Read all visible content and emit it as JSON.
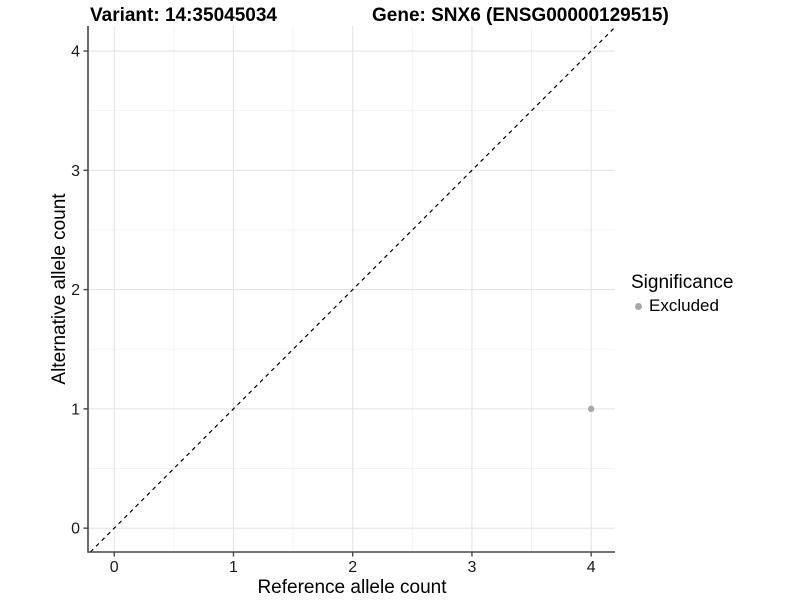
{
  "titles": {
    "variant": "Variant: 14:35045034",
    "gene": "Gene: SNX6 (ENSG00000129515)"
  },
  "chart_data": {
    "type": "scatter",
    "title_left": "Variant: 14:35045034",
    "title_right": "Gene: SNX6 (ENSG00000129515)",
    "xlabel": "Reference allele count",
    "ylabel": "Alternative allele count",
    "xlim": [
      -0.22,
      4.2
    ],
    "ylim": [
      -0.2,
      4.21
    ],
    "xticks": [
      0,
      1,
      2,
      3,
      4
    ],
    "yticks": [
      0,
      1,
      2,
      3,
      4
    ],
    "minor_xticks": [
      0.5,
      1.5,
      2.5,
      3.5
    ],
    "minor_yticks": [
      0.5,
      1.5,
      2.5,
      3.5
    ],
    "grid": "major+minor",
    "identity_line": {
      "slope": 1,
      "intercept": 0,
      "style": "dashed",
      "color": "#000000"
    },
    "points": [
      {
        "x": 4,
        "y": 1,
        "significance": "Excluded"
      }
    ],
    "point_color": "#a8a8a8",
    "legend": {
      "title": "Significance",
      "position": "right",
      "items": [
        {
          "label": "Excluded",
          "color": "#a8a8a8",
          "marker": "circle"
        }
      ]
    }
  },
  "colors": {
    "background": "#ffffff",
    "grid_major": "#e4e4e4",
    "grid_minor": "#f2f2f2",
    "axis_line": "#474747",
    "tick_text": "#1a1a1a",
    "title_text": "#000000"
  }
}
